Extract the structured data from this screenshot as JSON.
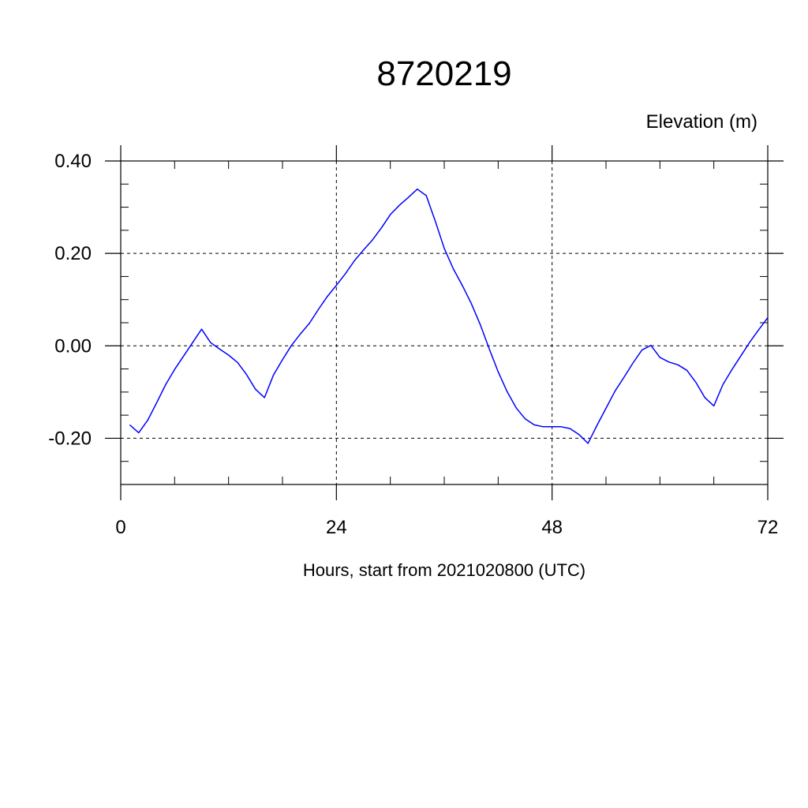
{
  "chart_data": {
    "type": "line",
    "title": "8720219",
    "ylabel": "Elevation (m)",
    "xlabel": "Hours, start from 2021020800 (UTC)",
    "xlim": [
      0,
      72
    ],
    "ylim": [
      -0.3,
      0.4
    ],
    "xticks": [
      0,
      24,
      48,
      72
    ],
    "xtick_labels": [
      "0",
      "24",
      "48",
      "72"
    ],
    "yticks": [
      0.4,
      0.2,
      0.0,
      -0.2
    ],
    "ytick_labels": [
      "0.40",
      "0.20",
      "0.00",
      "-0.20"
    ],
    "grid": true,
    "series": [
      {
        "color": "#0000ff",
        "x": [
          1,
          2,
          3,
          4,
          5,
          6,
          7,
          8,
          9,
          10,
          11,
          12,
          13,
          14,
          15,
          16,
          17,
          18,
          19,
          20,
          21,
          22,
          23,
          24,
          25,
          26,
          27,
          28,
          29,
          30,
          31,
          32,
          33,
          34,
          35,
          36,
          37,
          38,
          39,
          40,
          41,
          42,
          43,
          44,
          45,
          46,
          47,
          48,
          49,
          50,
          51,
          52,
          53,
          54,
          55,
          56,
          57,
          58,
          59,
          60,
          61,
          62,
          63,
          64,
          65,
          66,
          67,
          68,
          69,
          70,
          71,
          72
        ],
        "values": [
          -0.171,
          -0.188,
          -0.161,
          -0.123,
          -0.084,
          -0.051,
          -0.022,
          0.007,
          0.036,
          0.007,
          -0.007,
          -0.02,
          -0.036,
          -0.062,
          -0.094,
          -0.112,
          -0.063,
          -0.03,
          0.001,
          0.026,
          0.049,
          0.079,
          0.107,
          0.131,
          0.156,
          0.184,
          0.207,
          0.229,
          0.255,
          0.284,
          0.304,
          0.321,
          0.339,
          0.325,
          0.27,
          0.211,
          0.167,
          0.131,
          0.092,
          0.046,
          -0.006,
          -0.056,
          -0.099,
          -0.134,
          -0.158,
          -0.171,
          -0.175,
          -0.175,
          -0.175,
          -0.179,
          -0.192,
          -0.211,
          -0.172,
          -0.135,
          -0.098,
          -0.068,
          -0.037,
          -0.009,
          0.001,
          -0.025,
          -0.035,
          -0.041,
          -0.053,
          -0.079,
          -0.112,
          -0.13,
          -0.084,
          -0.052,
          -0.022,
          0.008,
          0.035,
          0.061
        ]
      }
    ]
  }
}
